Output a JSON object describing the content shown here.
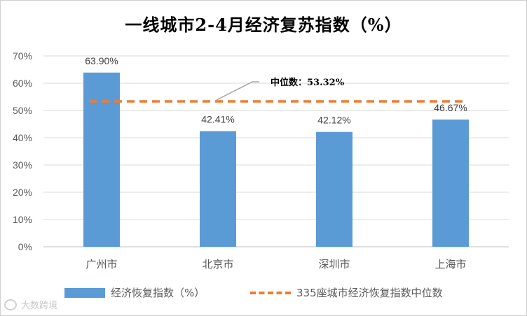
{
  "chart_data": {
    "type": "bar",
    "title": "一线城市2-4月经济复苏指数（%）",
    "categories": [
      "广州市",
      "北京市",
      "深圳市",
      "上海市"
    ],
    "series": [
      {
        "name": "经济恢复指数（%）",
        "values": [
          63.9,
          42.41,
          42.12,
          46.67
        ],
        "color": "#5B9BD5"
      }
    ],
    "data_labels": [
      "63.90%",
      "42.41%",
      "42.12%",
      "46.67%"
    ],
    "reference_line": {
      "name": "335座城市经济恢复指数中位数",
      "value": 53.32,
      "color": "#ED7D31",
      "annotation": "中位数：53.32%"
    },
    "ylim": [
      0,
      70
    ],
    "yticks": [
      "0%",
      "10%",
      "20%",
      "30%",
      "40%",
      "50%",
      "60%",
      "70%"
    ],
    "ytick_values": [
      0,
      10,
      20,
      30,
      40,
      50,
      60,
      70
    ],
    "grid": true,
    "legend_position": "bottom"
  },
  "watermark": "大数跨境"
}
